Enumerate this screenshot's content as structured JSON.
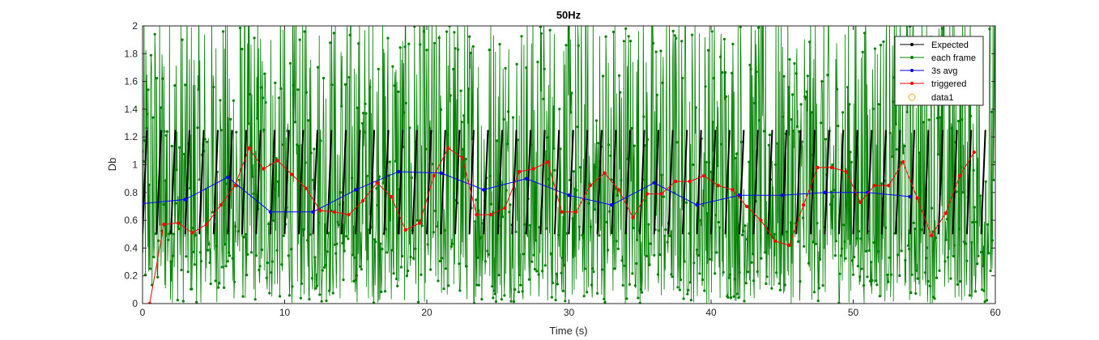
{
  "chart_data": {
    "type": "line",
    "title": "50Hz",
    "xlabel": "Time (s)",
    "ylabel": "Db",
    "xlim": [
      0,
      60
    ],
    "ylim": [
      0,
      2
    ],
    "xticks": [
      "0",
      "10",
      "20",
      "30",
      "40",
      "50",
      "60"
    ],
    "yticks": [
      "0",
      "0.2",
      "0.4",
      "0.6",
      "0.8",
      "1",
      "1.2",
      "1.4",
      "1.6",
      "1.8",
      "2"
    ],
    "grid": false,
    "legend_position": "top-right",
    "series": [
      {
        "name": "Expected",
        "color": "#000000",
        "style": "sawtooth",
        "period": 1,
        "min": 0.5,
        "max": 1.25
      },
      {
        "name": "each frame",
        "color": "#008000",
        "style": "noise",
        "range": [
          0,
          2
        ]
      },
      {
        "name": "3s avg",
        "color": "#0000ff",
        "x": [
          0,
          3,
          6,
          9,
          12,
          15,
          18,
          21,
          24,
          27,
          30,
          33,
          36,
          39,
          42,
          45,
          48,
          51,
          54
        ],
        "y": [
          0.72,
          0.75,
          0.91,
          0.66,
          0.66,
          0.82,
          0.95,
          0.94,
          0.82,
          0.9,
          0.78,
          0.71,
          0.87,
          0.71,
          0.78,
          0.78,
          0.8,
          0.8,
          0.77
        ]
      },
      {
        "name": "triggered",
        "color": "#ff0000",
        "x": [
          0.5,
          1.5,
          2.5,
          3.5,
          4.5,
          5.5,
          6.5,
          7.5,
          8.5,
          9.5,
          10.5,
          11.5,
          12.5,
          13.5,
          14.5,
          15.5,
          16.5,
          17.5,
          18.5,
          19.5,
          20.5,
          21.5,
          22.5,
          23.5,
          24.5,
          25.5,
          26.5,
          27.5,
          28.5,
          29.5,
          30.5,
          31.5,
          32.5,
          33.5,
          34.5,
          35.5,
          36.5,
          37.5,
          38.5,
          39.5,
          40.5,
          41.5,
          42.5,
          43.5,
          44.5,
          45.5,
          46.5,
          47.5,
          48.5,
          49.5,
          50.5,
          51.5,
          52.5,
          53.5,
          54.5,
          55.5,
          56.5,
          57.5,
          58.5
        ],
        "y": [
          0.0,
          0.57,
          0.58,
          0.51,
          0.57,
          0.71,
          0.85,
          1.12,
          0.97,
          1.03,
          0.93,
          0.83,
          0.67,
          0.66,
          0.64,
          0.74,
          0.87,
          0.77,
          0.53,
          0.58,
          0.92,
          1.12,
          1.05,
          0.64,
          0.64,
          0.69,
          0.95,
          0.97,
          1.02,
          0.66,
          0.66,
          0.85,
          0.94,
          0.82,
          0.62,
          0.79,
          0.79,
          0.88,
          0.88,
          0.92,
          0.85,
          0.82,
          0.7,
          0.6,
          0.45,
          0.42,
          0.71,
          0.98,
          0.98,
          0.95,
          0.73,
          0.85,
          0.85,
          1.02,
          0.76,
          0.49,
          0.65,
          0.92,
          1.09
        ]
      },
      {
        "name": "data1",
        "color": "#edb120",
        "style": "marker-only",
        "x": [],
        "y": []
      }
    ]
  }
}
